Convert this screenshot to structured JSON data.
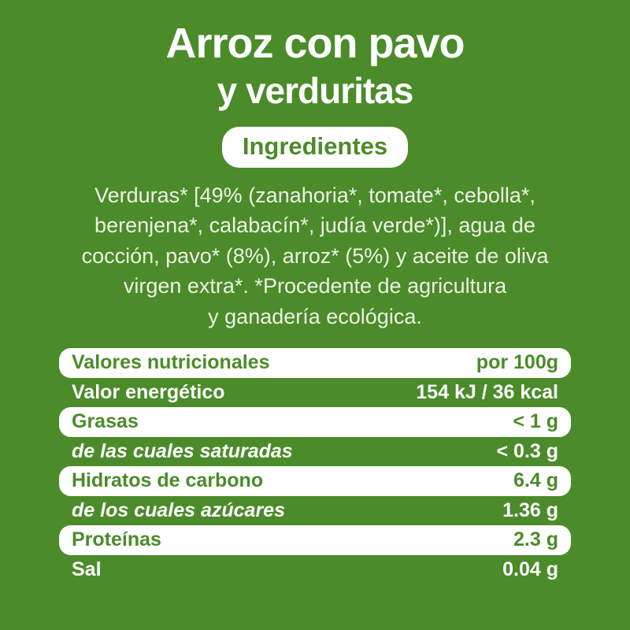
{
  "colors": {
    "background_green": "#4b8b2a",
    "text_white": "#ffffff",
    "paragraph_white": "#edf2e4",
    "table_green_text": "#4b8b2a"
  },
  "title": {
    "line1": "Arroz con pavo",
    "line2": "y verduritas"
  },
  "ingredients": {
    "badge_label": "Ingredientes",
    "lines": [
      "Verduras* [49% (zanahoria*, tomate*, cebolla*,",
      "berenjena*, calabacín*, judía verde*)], agua de",
      "cocción, pavo* (8%), arroz* (5%) y aceite de oliva",
      "virgen extra*. *Procedente de agricultura",
      "y ganadería ecológica."
    ]
  },
  "nutrition_table": {
    "header": {
      "label": "Valores nutricionales",
      "value": "por 100g"
    },
    "rows": [
      {
        "label": "Valor energético",
        "value": "154 kJ / 36 kcal"
      },
      {
        "label": "Grasas",
        "value": "< 1 g"
      },
      {
        "label": "de las cuales saturadas",
        "value": "< 0.3 g"
      },
      {
        "label": "Hidratos de carbono",
        "value": "6.4 g"
      },
      {
        "label": "de los cuales azúcares",
        "value": "1.36 g"
      },
      {
        "label": "Proteínas",
        "value": "2.3 g"
      },
      {
        "label": "Sal",
        "value": "0.04 g"
      }
    ]
  }
}
